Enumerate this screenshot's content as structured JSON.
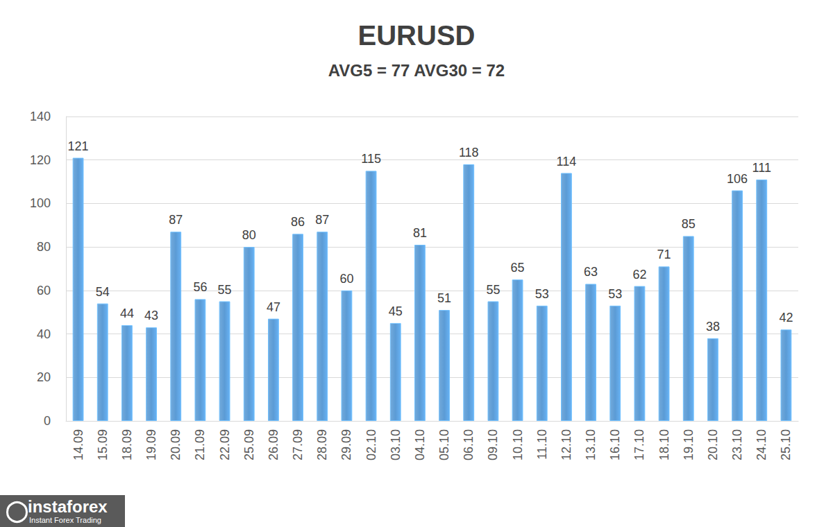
{
  "chart_data": {
    "type": "bar",
    "title": "EURUSD",
    "subtitle": "AVG5 = 77 AVG30 = 72",
    "categories": [
      "14.09",
      "15.09",
      "18.09",
      "19.09",
      "20.09",
      "21.09",
      "22.09",
      "25.09",
      "26.09",
      "27.09",
      "28.09",
      "29.09",
      "02.10",
      "03.10",
      "04.10",
      "05.10",
      "06.10",
      "09.10",
      "10.10",
      "11.10",
      "12.10",
      "13.10",
      "16.10",
      "17.10",
      "18.10",
      "19.10",
      "20.10",
      "23.10",
      "24.10",
      "25.10"
    ],
    "values": [
      121,
      54,
      44,
      43,
      87,
      56,
      55,
      80,
      47,
      86,
      87,
      60,
      115,
      45,
      81,
      51,
      118,
      55,
      65,
      53,
      114,
      63,
      53,
      62,
      71,
      85,
      38,
      106,
      111,
      42
    ],
    "color": "#5b9bd5",
    "ylim": [
      0,
      140
    ],
    "yticks": [
      0,
      20,
      40,
      60,
      80,
      100,
      120,
      140
    ],
    "grid": true,
    "data_labels": true,
    "annotations": [
      "instaforex",
      "Instant Forex Trading"
    ]
  }
}
